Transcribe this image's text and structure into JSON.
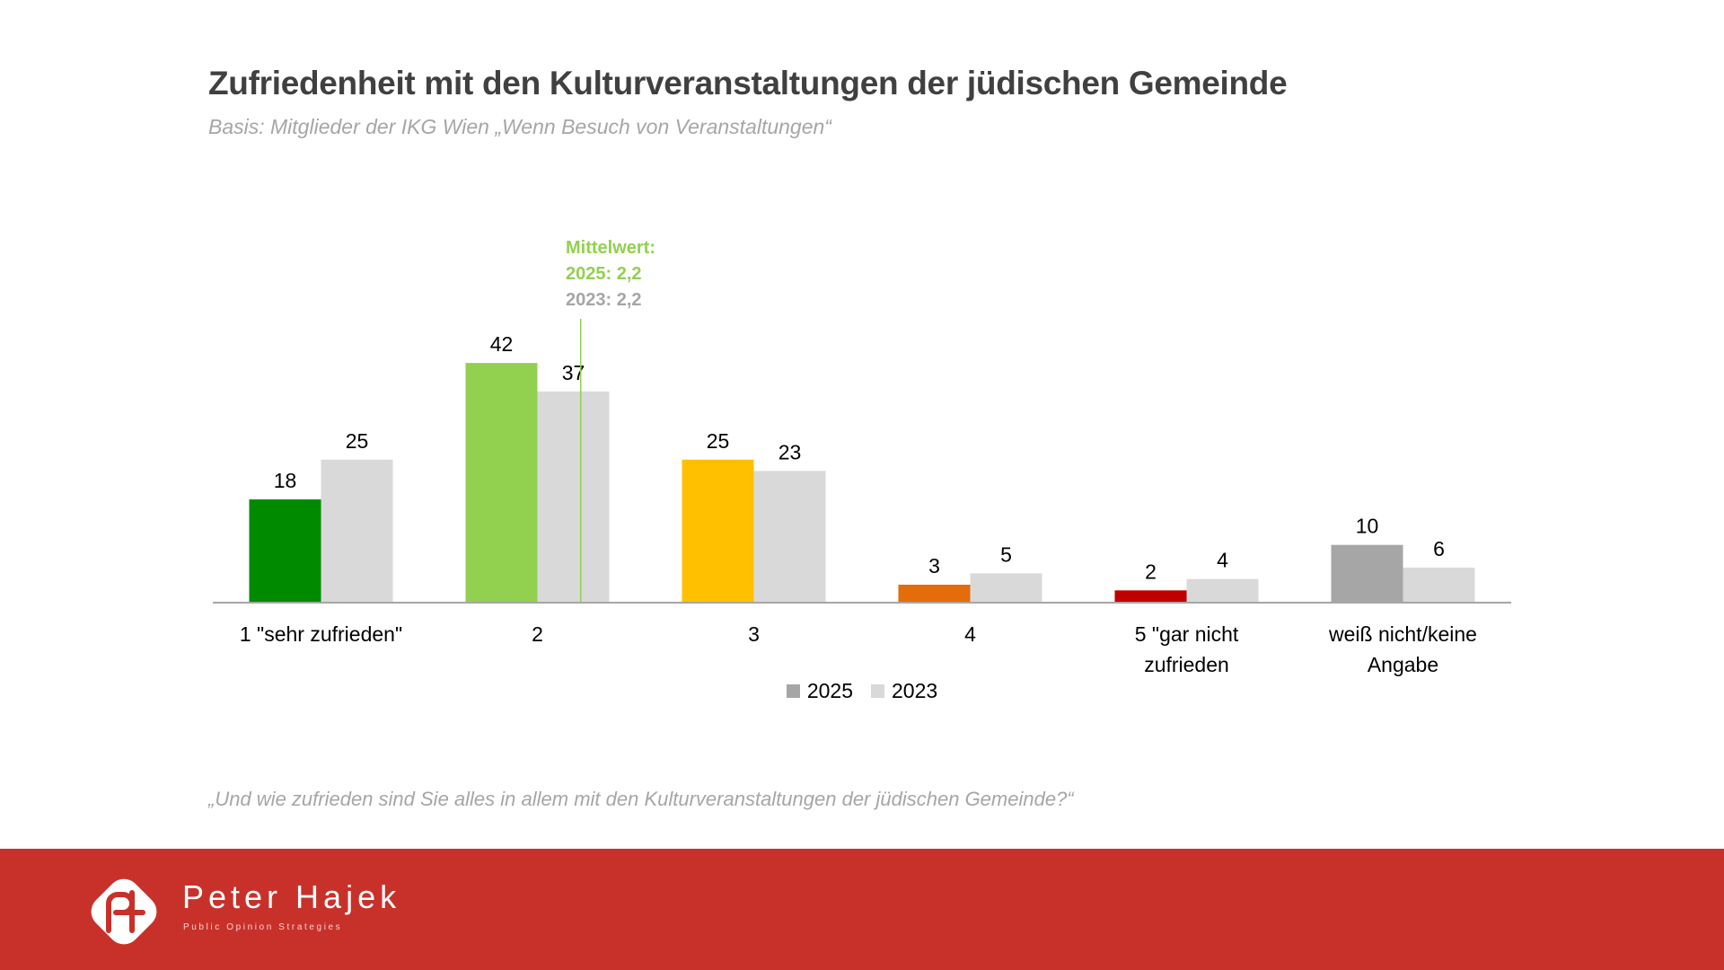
{
  "header": {
    "title": "Zufriedenheit mit den Kulturveranstaltungen der jüdischen Gemeinde",
    "subtitle": "Basis: Mitglieder der IKG Wien „Wenn Besuch von Veranstaltungen“"
  },
  "mean_annotation": {
    "title": "Mittelwert:",
    "line_2025": "2025: 2,2",
    "line_2023": "2023: 2,2",
    "mean_value": 2.2
  },
  "question": "„Und wie zufrieden sind Sie alles in allem mit den Kulturveranstaltungen der jüdischen Gemeinde?“",
  "footer": {
    "brand_name": "Peter Hajek",
    "brand_tagline": "Public Opinion Strategies",
    "background_color": "#c8312a"
  },
  "chart_data": {
    "type": "bar",
    "title": "Zufriedenheit mit den Kulturveranstaltungen der jüdischen Gemeinde",
    "xlabel": "",
    "ylabel": "",
    "ylim": [
      0,
      50
    ],
    "grid": false,
    "legend_position": "bottom",
    "categories": [
      [
        "1 \"sehr zufrieden\""
      ],
      [
        "2"
      ],
      [
        "3"
      ],
      [
        "4"
      ],
      [
        "5 \"gar nicht",
        "zufrieden"
      ],
      [
        "weiß nicht/keine",
        "Angabe"
      ]
    ],
    "series": [
      {
        "name": "2025",
        "values": [
          18,
          42,
          25,
          3,
          2,
          10
        ],
        "legend_color": "#a6a6a6",
        "colors": [
          "#008a00",
          "#92d050",
          "#ffc000",
          "#e46c0a",
          "#c00000",
          "#a6a6a6"
        ]
      },
      {
        "name": "2023",
        "values": [
          25,
          37,
          23,
          5,
          4,
          6
        ],
        "legend_color": "#d9d9d9",
        "colors": [
          "#d9d9d9",
          "#d9d9d9",
          "#d9d9d9",
          "#d9d9d9",
          "#d9d9d9",
          "#d9d9d9"
        ]
      }
    ],
    "mean_line": {
      "value": 2.2,
      "color": "#92d050"
    },
    "axis_color": "#a6a6a6"
  }
}
